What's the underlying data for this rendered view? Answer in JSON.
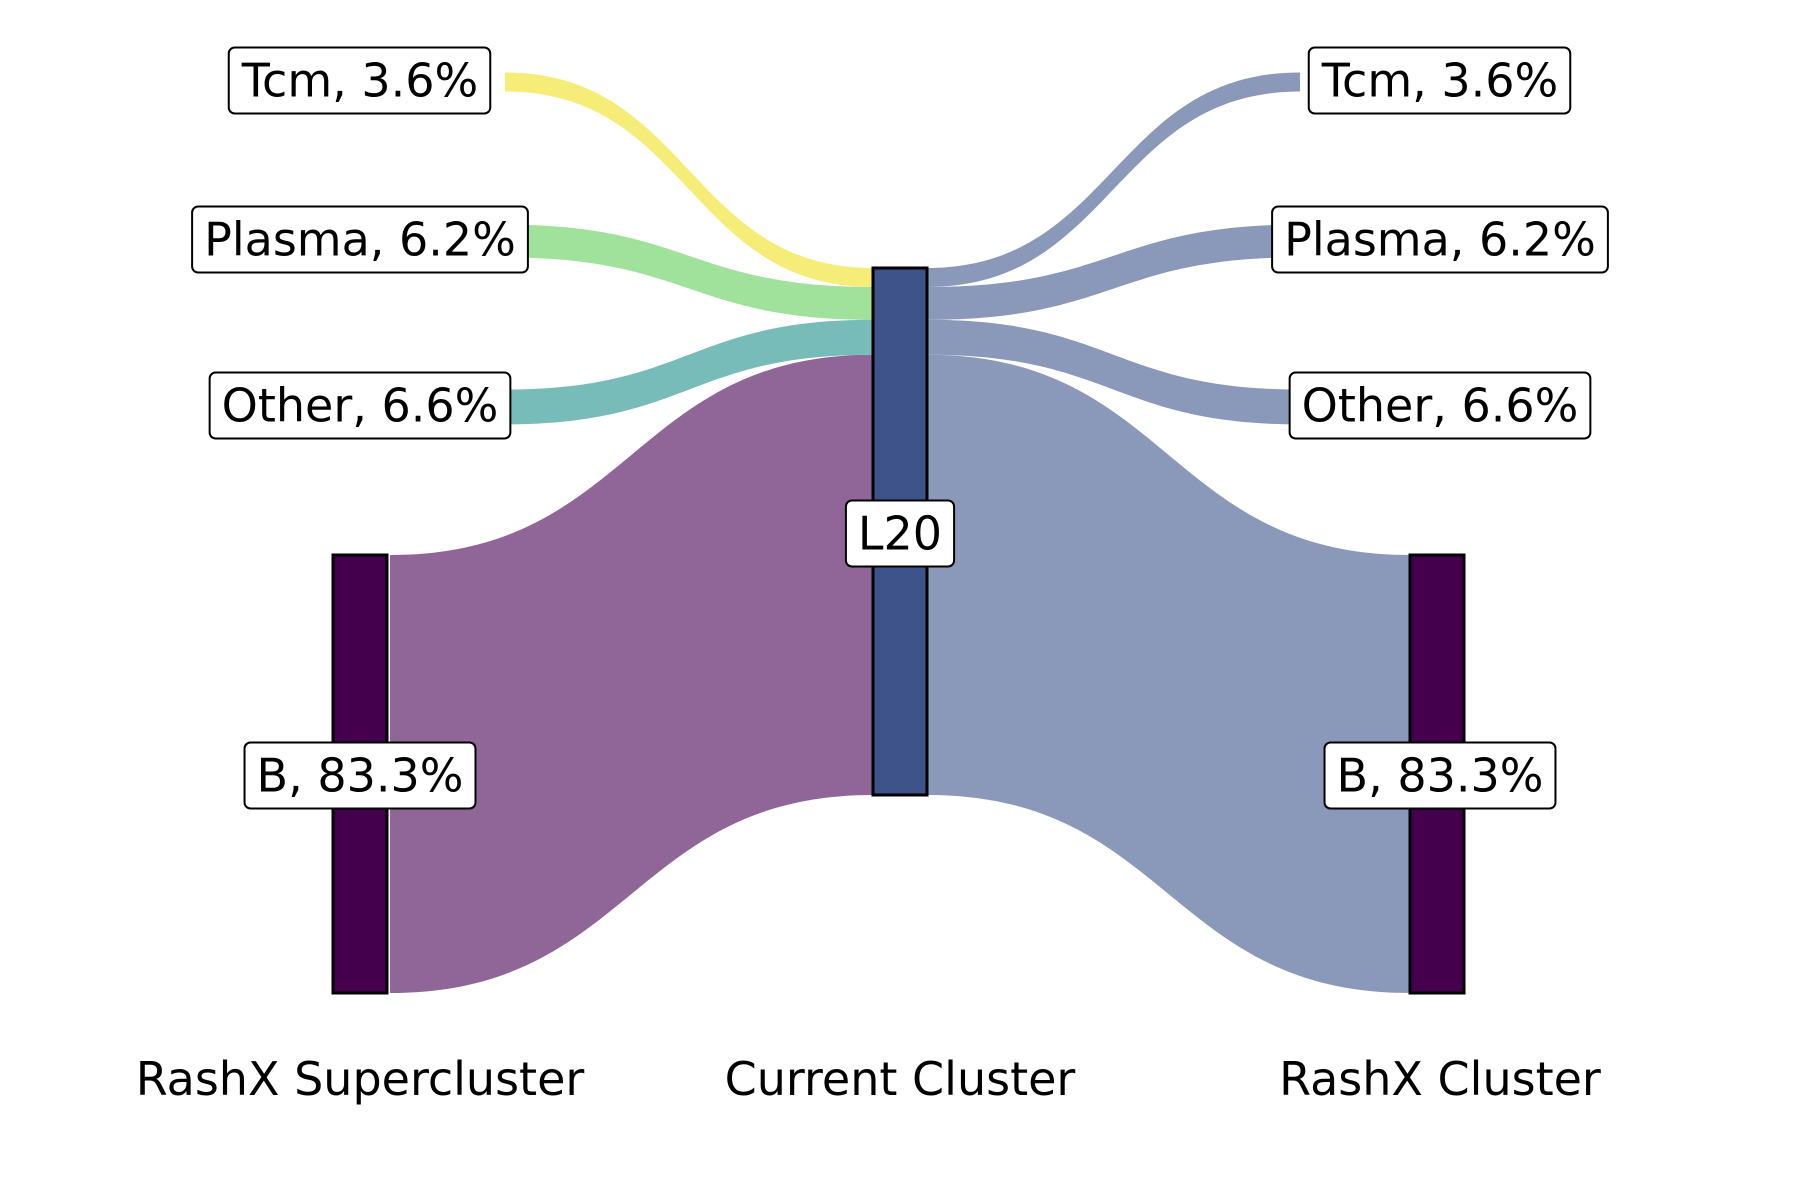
{
  "chart_data": {
    "type": "sankey",
    "columns": [
      "RashX Supercluster",
      "Current Cluster",
      "RashX Cluster"
    ],
    "center_node": {
      "label": "L20",
      "color": "#3d5389"
    },
    "sources": [
      {
        "name": "Tcm",
        "label": "Tcm, 3.6%",
        "percent": 3.6,
        "color": "#f5e960"
      },
      {
        "name": "Plasma",
        "label": "Plasma, 6.2%",
        "percent": 6.2,
        "color": "#8fdc8a"
      },
      {
        "name": "Other",
        "label": "Other, 6.6%",
        "percent": 6.6,
        "color": "#5fb0ab"
      },
      {
        "name": "B",
        "label": "B, 83.3%",
        "percent": 83.3,
        "color": "#74407f"
      }
    ],
    "targets": [
      {
        "name": "Tcm",
        "label": "Tcm, 3.6%",
        "percent": 3.6
      },
      {
        "name": "Plasma",
        "label": "Plasma, 6.2%",
        "percent": 6.2
      },
      {
        "name": "Other",
        "label": "Other, 6.6%",
        "percent": 6.6
      },
      {
        "name": "B",
        "label": "B, 83.3%",
        "percent": 83.3
      }
    ],
    "target_flow_color": "#8a99ba",
    "node_bar_color": "#44004c"
  }
}
